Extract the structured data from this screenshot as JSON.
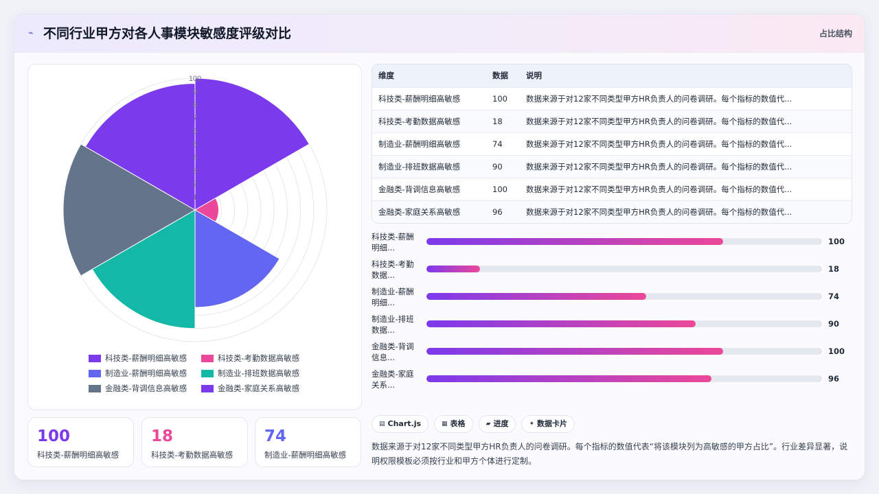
{
  "header": {
    "title": "不同行业甲方对各人事模块敏感度评级对比",
    "tag": "占比结构"
  },
  "chart_data": {
    "type": "polarArea",
    "categories": [
      "科技类-薪酬明细高敏感",
      "科技类-考勤数据高敏感",
      "制造业-薪酬明细高敏感",
      "制造业-排班数据高敏感",
      "金融类-背调信息高敏感",
      "金融类-家庭关系高敏感"
    ],
    "values": [
      100,
      18,
      74,
      90,
      100,
      96
    ],
    "colors": [
      "#7c3aed",
      "#ec4899",
      "#6366f1",
      "#14b8a6",
      "#64748b",
      "#7c3aed"
    ],
    "rlim": [
      0,
      100
    ],
    "tick_labels": [
      "100",
      "9",
      "8",
      "7",
      "6",
      "5",
      "4",
      "3",
      "2",
      "1"
    ],
    "legend": "bottom"
  },
  "stats": [
    {
      "value": "100",
      "label": "科技类-薪酬明细高敏感",
      "color": "#7c3aed"
    },
    {
      "value": "18",
      "label": "科技类-考勤数据高敏感",
      "color": "#ec4899"
    },
    {
      "value": "74",
      "label": "制造业-薪酬明细高敏感",
      "color": "#6366f1"
    }
  ],
  "table": {
    "headers": [
      "维度",
      "数据",
      "说明"
    ],
    "rows": [
      [
        "科技类-薪酬明细高敏感",
        "100",
        "数据来源于对12家不同类型甲方HR负责人的问卷调研。每个指标的数值代..."
      ],
      [
        "科技类-考勤数据高敏感",
        "18",
        "数据来源于对12家不同类型甲方HR负责人的问卷调研。每个指标的数值代..."
      ],
      [
        "制造业-薪酬明细高敏感",
        "74",
        "数据来源于对12家不同类型甲方HR负责人的问卷调研。每个指标的数值代..."
      ],
      [
        "制造业-排班数据高敏感",
        "90",
        "数据来源于对12家不同类型甲方HR负责人的问卷调研。每个指标的数值代..."
      ],
      [
        "金融类-背调信息高敏感",
        "100",
        "数据来源于对12家不同类型甲方HR负责人的问卷调研。每个指标的数值代..."
      ],
      [
        "金融类-家庭关系高敏感",
        "96",
        "数据来源于对12家不同类型甲方HR负责人的问卷调研。每个指标的数值代..."
      ]
    ]
  },
  "bars": [
    {
      "label": "科技类-薪酬明细...",
      "value": 100,
      "display": "100",
      "fill_pct": 75
    },
    {
      "label": "科技类-考勤数据...",
      "value": 18,
      "display": "18",
      "fill_pct": 13.5
    },
    {
      "label": "制造业-薪酬明细...",
      "value": 74,
      "display": "74",
      "fill_pct": 55.5
    },
    {
      "label": "制造业-排班数据...",
      "value": 90,
      "display": "90",
      "fill_pct": 68
    },
    {
      "label": "金融类-背调信息...",
      "value": 100,
      "display": "100",
      "fill_pct": 75
    },
    {
      "label": "金融类-家庭关系...",
      "value": 96,
      "display": "96",
      "fill_pct": 72
    }
  ],
  "chips": [
    {
      "icon": "chart-icon",
      "label": "Chart.js"
    },
    {
      "icon": "table-icon",
      "label": "表格"
    },
    {
      "icon": "progress-icon",
      "label": "进度"
    },
    {
      "icon": "sparkle-icon",
      "label": "数据卡片"
    }
  ],
  "description": "数据来源于对12家不同类型甲方HR负责人的问卷调研。每个指标的数值代表“将该模块列为高敏感的甲方占比”。行业差异显著，说明权限模板必须按行业和甲方个体进行定制。"
}
